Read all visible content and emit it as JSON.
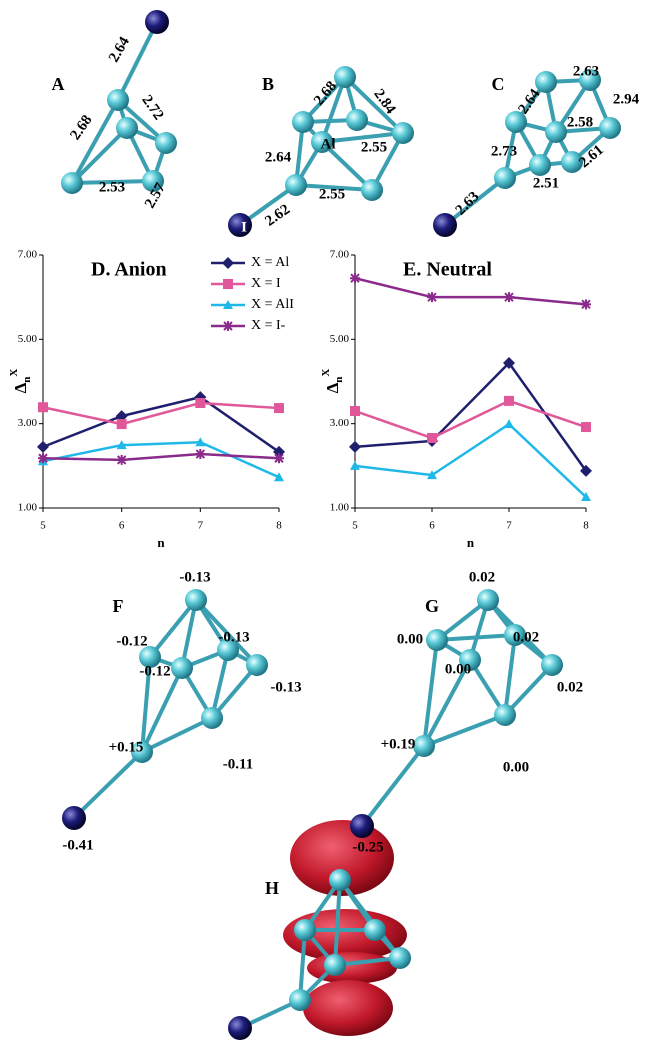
{
  "chart_data": [
    {
      "type": "line",
      "title": "D. Anion",
      "xlabel": "n",
      "ylabel": "Δ",
      "ylabel_sub": "n",
      "ylabel_sup": "X",
      "x": [
        5,
        6,
        7,
        8
      ],
      "xlim": [
        5,
        8
      ],
      "xticks": [
        5,
        6,
        7,
        8
      ],
      "ylim": [
        1,
        7
      ],
      "yticks": [
        {
          "value": 1,
          "label": "1.00"
        },
        {
          "value": 3,
          "label": "3.00"
        },
        {
          "value": 5,
          "label": "5.00"
        },
        {
          "value": 7,
          "label": "7.00"
        }
      ],
      "legend": "top-right",
      "series": [
        {
          "name": "X = Al",
          "color": "#1f1f6e",
          "marker": "diamond",
          "values": [
            2.45,
            3.18,
            3.63,
            2.33
          ]
        },
        {
          "name": "X = I",
          "color": "#e0589a",
          "marker": "square",
          "values": [
            3.39,
            2.99,
            3.49,
            3.37
          ]
        },
        {
          "name": "X = AlI",
          "color": "#1fb8e8",
          "marker": "triangle",
          "values": [
            2.11,
            2.49,
            2.56,
            1.73
          ]
        },
        {
          "name": "X = I-",
          "color": "#8a2a8a",
          "marker": "star",
          "values": [
            2.18,
            2.14,
            2.28,
            2.18
          ]
        }
      ]
    },
    {
      "type": "line",
      "title": "E. Neutral",
      "xlabel": "n",
      "ylabel": "Δ",
      "ylabel_sub": "n",
      "ylabel_sup": "X",
      "x": [
        5,
        6,
        7,
        8
      ],
      "xlim": [
        5,
        8
      ],
      "xticks": [
        5,
        6,
        7,
        8
      ],
      "ylim": [
        1,
        7
      ],
      "yticks": [
        {
          "value": 1,
          "label": "1.00"
        },
        {
          "value": 3,
          "label": "3.00"
        },
        {
          "value": 5,
          "label": "5.00"
        },
        {
          "value": 7,
          "label": "7.00"
        }
      ],
      "series": [
        {
          "color": "#1f1f6e",
          "marker": "diamond",
          "values": [
            2.45,
            2.59,
            4.44,
            1.88
          ]
        },
        {
          "color": "#e0589a",
          "marker": "square",
          "values": [
            3.3,
            2.66,
            3.54,
            2.92
          ]
        },
        {
          "color": "#1fb8e8",
          "marker": "triangle",
          "values": [
            2.0,
            1.78,
            2.99,
            1.26
          ]
        },
        {
          "color": "#8a2a8a",
          "marker": "star",
          "values": [
            6.45,
            6.0,
            6.0,
            5.83
          ]
        }
      ]
    }
  ],
  "panels": [
    {
      "label": "A",
      "annotations": [
        "2.64",
        "2.68",
        "2.72",
        "2.53",
        "2.57"
      ]
    },
    {
      "label": "B",
      "annotations": [
        "2.68",
        "2.84",
        "2.64",
        "Al",
        "2.55",
        "2.55",
        "2.62",
        "I"
      ]
    },
    {
      "label": "C",
      "annotations": [
        "2.63",
        "2.64",
        "2.94",
        "2.58",
        "2.73",
        "2.61",
        "2.51",
        "2.63"
      ]
    },
    {
      "label": "F",
      "annotations": [
        "-0.13",
        "-0.12",
        "-0.13",
        "-0.12",
        "-0.13",
        "+0.15",
        "-0.11",
        "-0.41"
      ]
    },
    {
      "label": "G",
      "annotations": [
        "0.02",
        "0.00",
        "0.02",
        "0.00",
        "0.02",
        "+0.19",
        "0.00",
        "-0.25"
      ]
    },
    {
      "label": "H"
    }
  ]
}
